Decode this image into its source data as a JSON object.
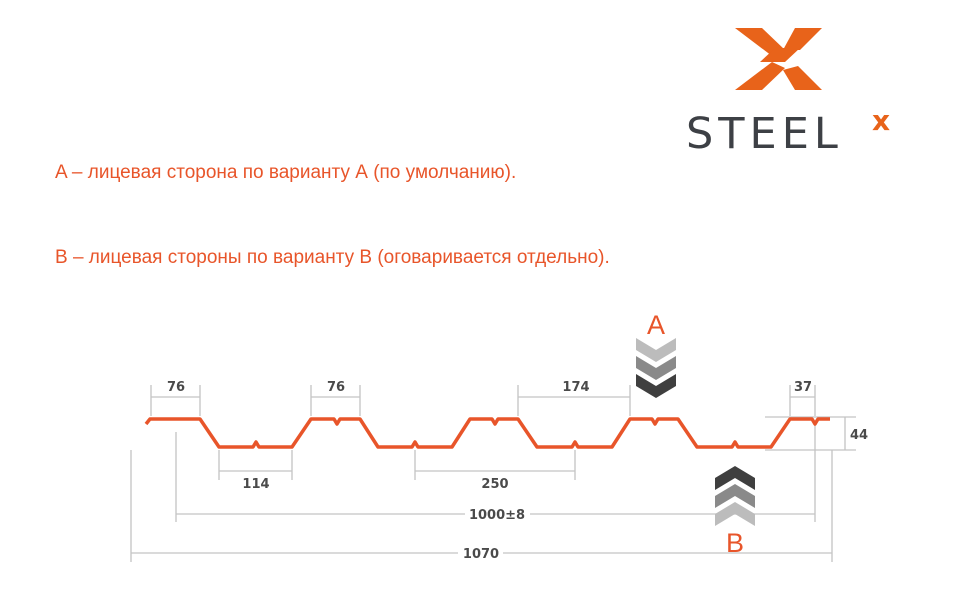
{
  "logo": {
    "text": "STEEL",
    "superscript": "x",
    "colors": {
      "orange": "#e8631a",
      "dark": "#3d4045"
    }
  },
  "captions": {
    "a": "A – лицевая сторона по варианту А (по умолчанию).",
    "b": "B – лицевая стороны по варианту В (оговаривается отдельно)."
  },
  "diagram": {
    "profile_color": "#e8552a",
    "side_a_label": "A",
    "side_b_label": "B",
    "dimensions": {
      "top_flange_1": "76",
      "top_flange_2": "76",
      "bottom_flange": "114",
      "pitch_bottom": "250",
      "pitch_top": "174",
      "edge": "37",
      "height": "44",
      "useful_width": "1000±8",
      "total_width": "1070"
    }
  }
}
